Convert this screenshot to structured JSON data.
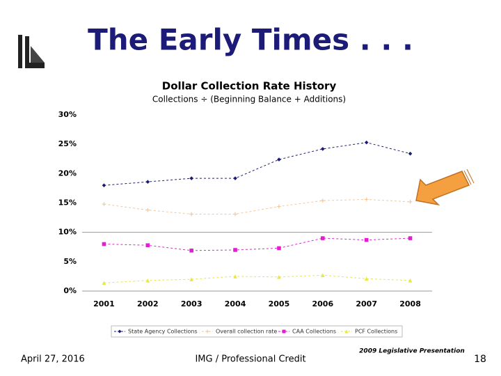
{
  "slide": {
    "title": "The Early Times . . .",
    "date": "April 27, 2016",
    "footer": "IMG / Professional Credit",
    "presentation": "2009 Legislative Presentation",
    "page": "18"
  },
  "chart_data": {
    "type": "line",
    "title": "Dollar Collection Rate History",
    "subtitle": "Collections ÷ (Beginning Balance + Additions)",
    "categories": [
      "2001",
      "2002",
      "2003",
      "2004",
      "2005",
      "2006",
      "2007",
      "2008"
    ],
    "series": [
      {
        "name": "State Agency Collections",
        "color": "#1c1c78",
        "marker": "diamond",
        "values": [
          18,
          18.6,
          19.2,
          19.2,
          22.4,
          24.2,
          25.3,
          23.4
        ]
      },
      {
        "name": "Overall collection rate",
        "color": "#f2c99a",
        "marker": "plus",
        "values": [
          14.8,
          13.8,
          13.1,
          13.1,
          14.4,
          15.4,
          15.6,
          15.2
        ]
      },
      {
        "name": "CAA Collections",
        "color": "#e020d0",
        "marker": "square",
        "values": [
          8,
          7.8,
          6.9,
          7,
          7.3,
          9,
          8.7,
          9
        ]
      },
      {
        "name": "PCF Collections",
        "color": "#e8e840",
        "marker": "triangle",
        "values": [
          1.4,
          1.8,
          2,
          2.5,
          2.4,
          2.7,
          2.1,
          1.8
        ]
      }
    ],
    "ylim": [
      0,
      30
    ],
    "yticks": [
      {
        "value": 0,
        "label": "0%"
      },
      {
        "value": 5,
        "label": "5%"
      },
      {
        "value": 10,
        "label": "10%"
      },
      {
        "value": 15,
        "label": "15%"
      },
      {
        "value": 20,
        "label": "20%"
      },
      {
        "value": 25,
        "label": "25%"
      },
      {
        "value": 30,
        "label": "30%"
      }
    ],
    "reference_line": 10,
    "legend": "bottom"
  }
}
